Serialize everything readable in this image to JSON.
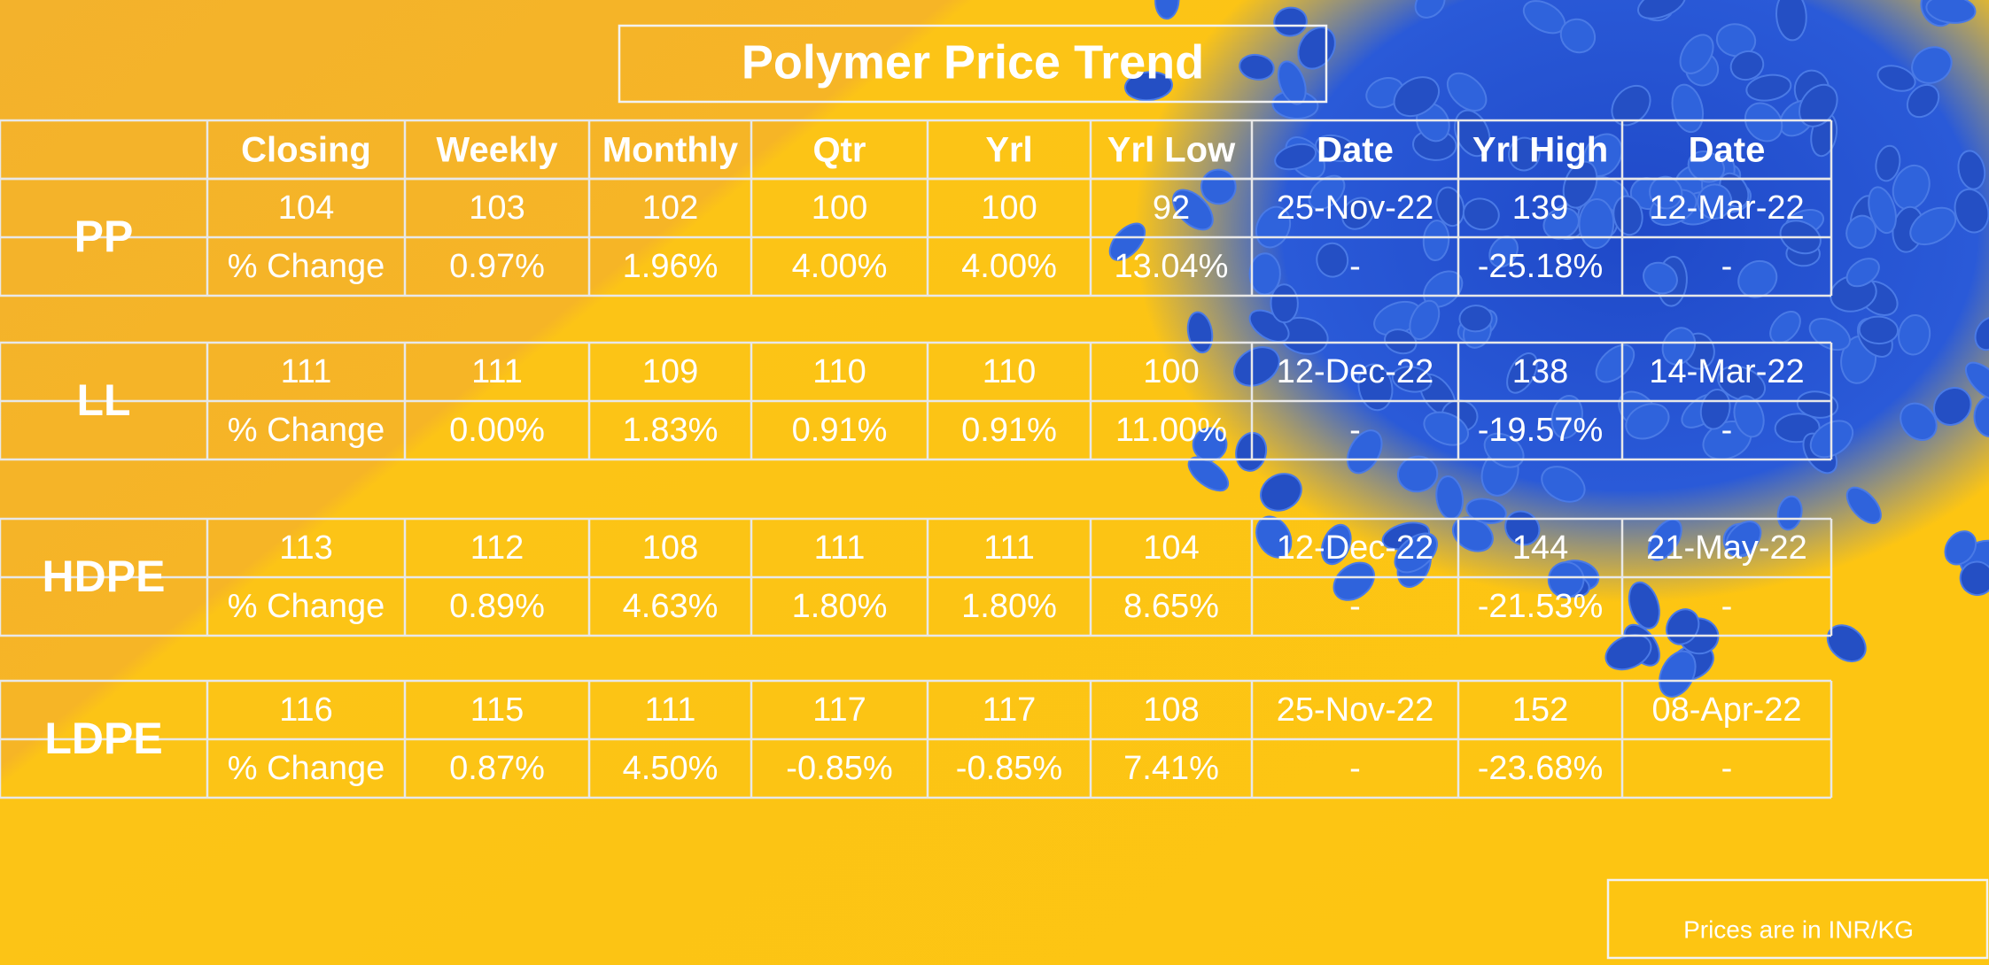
{
  "title": "Polymer Price Trend",
  "columns": [
    "Closing",
    "Weekly",
    "Monthly",
    "Qtr",
    "Yrl",
    "Yrl Low",
    "Date",
    "Yrl High",
    "Date"
  ],
  "groups": [
    {
      "name": "PP",
      "prices": [
        "104",
        "103",
        "102",
        "100",
        "100",
        "92",
        "25-Nov-22",
        "139",
        "12-Mar-22"
      ],
      "change_label": "% Change",
      "changes": [
        "0.97%",
        "1.96%",
        "4.00%",
        "4.00%",
        "13.04%",
        "-",
        "-25.18%",
        "-"
      ]
    },
    {
      "name": "LL",
      "prices": [
        "111",
        "111",
        "109",
        "110",
        "110",
        "100",
        "12-Dec-22",
        "138",
        "14-Mar-22"
      ],
      "change_label": "% Change",
      "changes": [
        "0.00%",
        "1.83%",
        "0.91%",
        "0.91%",
        "11.00%",
        "-",
        "-19.57%",
        "-"
      ]
    },
    {
      "name": "HDPE",
      "prices": [
        "113",
        "112",
        "108",
        "111",
        "111",
        "104",
        "12-Dec-22",
        "144",
        "21-May-22"
      ],
      "change_label": "% Change",
      "changes": [
        "0.89%",
        "4.63%",
        "1.80%",
        "1.80%",
        "8.65%",
        "-",
        "-21.53%",
        "-"
      ]
    },
    {
      "name": "LDPE",
      "prices": [
        "116",
        "115",
        "111",
        "117",
        "117",
        "108",
        "25-Nov-22",
        "152",
        "08-Apr-22"
      ],
      "change_label": "% Change",
      "changes": [
        "0.87%",
        "4.50%",
        "-0.85%",
        "-0.85%",
        "7.41%",
        "-",
        "-23.68%",
        "-"
      ]
    }
  ],
  "note": "Prices are in INR/KG"
}
